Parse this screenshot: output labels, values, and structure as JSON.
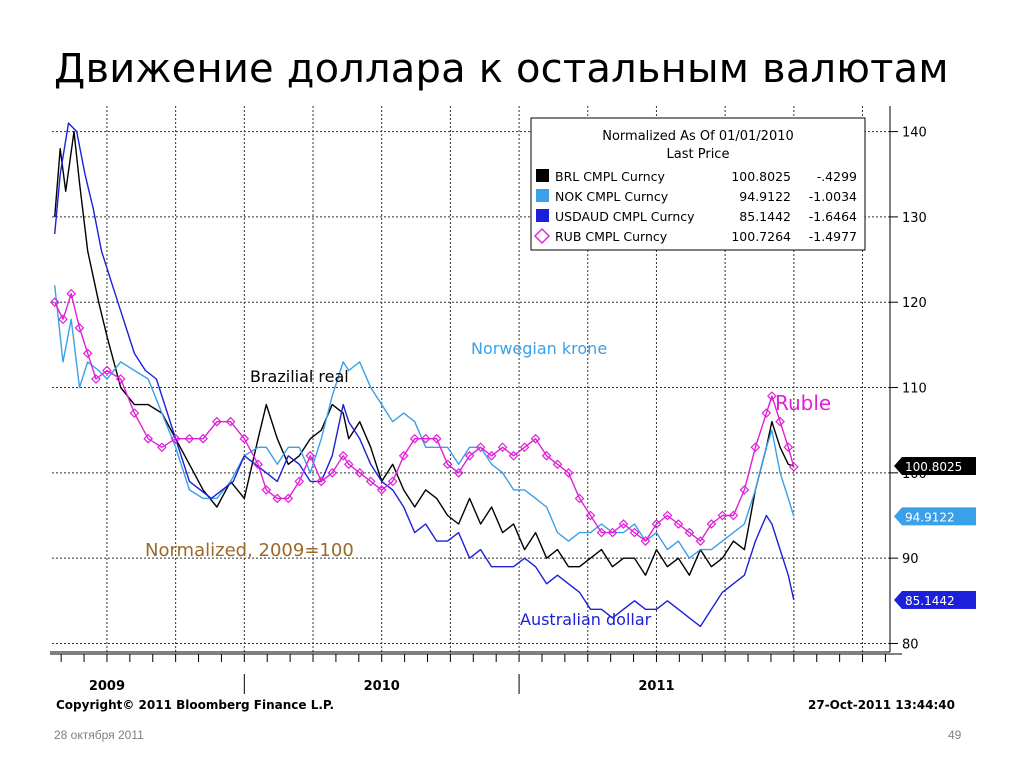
{
  "slide": {
    "title": "Движение доллара к остальным валютам",
    "date": "28 октября 2011",
    "page_number": "49"
  },
  "footer": {
    "copyright": "Copyright© 2011 Bloomberg Finance L.P.",
    "timestamp": "27-Oct-2011 13:44:40"
  },
  "chart_data": {
    "type": "line",
    "legend": {
      "header_line1": "Normalized As Of 01/01/2010",
      "header_line2": "Last Price",
      "placement": "top-right"
    },
    "annotations": {
      "brl": "Brazilial real",
      "nok": "Norwegian krone",
      "rub": "Ruble",
      "aud": "Australian dollar",
      "normalized": "Normalized, 2009=100"
    },
    "y_axis": {
      "side": "right",
      "ylim": [
        79,
        143
      ],
      "ticks": [
        80,
        90,
        100,
        110,
        120,
        130,
        140
      ]
    },
    "x_axis": {
      "xlim": [
        2008.8,
        2011.85
      ],
      "year_labels": [
        {
          "label": "2009",
          "x": 2009.0
        },
        {
          "label": "2010",
          "x": 2010.0
        },
        {
          "label": "2011",
          "x": 2011.0
        }
      ]
    },
    "grid": true,
    "series": [
      {
        "name": "BRL CMPL Curncy",
        "last_price": "100.8025",
        "change": "-.4299",
        "color": "#000000",
        "marker": "square",
        "points": [
          [
            2008.81,
            130
          ],
          [
            2008.83,
            138
          ],
          [
            2008.85,
            133
          ],
          [
            2008.88,
            140
          ],
          [
            2008.9,
            134
          ],
          [
            2008.93,
            126
          ],
          [
            2008.97,
            120
          ],
          [
            2009.0,
            116
          ],
          [
            2009.05,
            110
          ],
          [
            2009.1,
            108
          ],
          [
            2009.15,
            108
          ],
          [
            2009.2,
            107
          ],
          [
            2009.25,
            104
          ],
          [
            2009.3,
            101
          ],
          [
            2009.35,
            98
          ],
          [
            2009.4,
            96
          ],
          [
            2009.45,
            99
          ],
          [
            2009.5,
            97
          ],
          [
            2009.55,
            104
          ],
          [
            2009.58,
            108
          ],
          [
            2009.62,
            104
          ],
          [
            2009.66,
            101
          ],
          [
            2009.7,
            102
          ],
          [
            2009.74,
            104
          ],
          [
            2009.78,
            105
          ],
          [
            2009.82,
            108
          ],
          [
            2009.86,
            107
          ],
          [
            2009.88,
            104
          ],
          [
            2009.92,
            106
          ],
          [
            2009.96,
            103
          ],
          [
            2010.0,
            99
          ],
          [
            2010.04,
            101
          ],
          [
            2010.08,
            98
          ],
          [
            2010.12,
            96
          ],
          [
            2010.16,
            98
          ],
          [
            2010.2,
            97
          ],
          [
            2010.24,
            95
          ],
          [
            2010.28,
            94
          ],
          [
            2010.32,
            97
          ],
          [
            2010.36,
            94
          ],
          [
            2010.4,
            96
          ],
          [
            2010.44,
            93
          ],
          [
            2010.48,
            94
          ],
          [
            2010.52,
            91
          ],
          [
            2010.56,
            93
          ],
          [
            2010.6,
            90
          ],
          [
            2010.64,
            91
          ],
          [
            2010.68,
            89
          ],
          [
            2010.72,
            89
          ],
          [
            2010.76,
            90
          ],
          [
            2010.8,
            91
          ],
          [
            2010.84,
            89
          ],
          [
            2010.88,
            90
          ],
          [
            2010.92,
            90
          ],
          [
            2010.96,
            88
          ],
          [
            2011.0,
            91
          ],
          [
            2011.04,
            89
          ],
          [
            2011.08,
            90
          ],
          [
            2011.12,
            88
          ],
          [
            2011.16,
            91
          ],
          [
            2011.2,
            89
          ],
          [
            2011.24,
            90
          ],
          [
            2011.28,
            92
          ],
          [
            2011.32,
            91
          ],
          [
            2011.36,
            98
          ],
          [
            2011.4,
            103
          ],
          [
            2011.42,
            106
          ],
          [
            2011.45,
            103
          ],
          [
            2011.48,
            101
          ],
          [
            2011.5,
            100.8
          ]
        ]
      },
      {
        "name": "NOK CMPL Curncy",
        "last_price": "94.9122",
        "change": "-1.0034",
        "color": "#3aa0e8",
        "marker": "square",
        "points": [
          [
            2008.81,
            122
          ],
          [
            2008.84,
            113
          ],
          [
            2008.87,
            118
          ],
          [
            2008.9,
            110
          ],
          [
            2008.93,
            113
          ],
          [
            2008.97,
            112
          ],
          [
            2009.0,
            111
          ],
          [
            2009.05,
            113
          ],
          [
            2009.1,
            112
          ],
          [
            2009.15,
            111
          ],
          [
            2009.2,
            107
          ],
          [
            2009.25,
            103
          ],
          [
            2009.3,
            98
          ],
          [
            2009.35,
            97
          ],
          [
            2009.4,
            97
          ],
          [
            2009.45,
            99
          ],
          [
            2009.5,
            102
          ],
          [
            2009.55,
            103
          ],
          [
            2009.58,
            103
          ],
          [
            2009.62,
            101
          ],
          [
            2009.66,
            103
          ],
          [
            2009.7,
            103
          ],
          [
            2009.74,
            100
          ],
          [
            2009.78,
            104
          ],
          [
            2009.82,
            109
          ],
          [
            2009.86,
            113
          ],
          [
            2009.88,
            112
          ],
          [
            2009.92,
            113
          ],
          [
            2009.96,
            110
          ],
          [
            2010.0,
            108
          ],
          [
            2010.04,
            106
          ],
          [
            2010.08,
            107
          ],
          [
            2010.12,
            106
          ],
          [
            2010.16,
            103
          ],
          [
            2010.2,
            103
          ],
          [
            2010.24,
            103
          ],
          [
            2010.28,
            101
          ],
          [
            2010.32,
            103
          ],
          [
            2010.36,
            103
          ],
          [
            2010.4,
            101
          ],
          [
            2010.44,
            100
          ],
          [
            2010.48,
            98
          ],
          [
            2010.52,
            98
          ],
          [
            2010.56,
            97
          ],
          [
            2010.6,
            96
          ],
          [
            2010.64,
            93
          ],
          [
            2010.68,
            92
          ],
          [
            2010.72,
            93
          ],
          [
            2010.76,
            93
          ],
          [
            2010.8,
            94
          ],
          [
            2010.84,
            93
          ],
          [
            2010.88,
            93
          ],
          [
            2010.92,
            94
          ],
          [
            2010.96,
            92
          ],
          [
            2011.0,
            93
          ],
          [
            2011.04,
            91
          ],
          [
            2011.08,
            92
          ],
          [
            2011.12,
            90
          ],
          [
            2011.16,
            91
          ],
          [
            2011.2,
            91
          ],
          [
            2011.24,
            92
          ],
          [
            2011.28,
            93
          ],
          [
            2011.32,
            94
          ],
          [
            2011.36,
            98
          ],
          [
            2011.4,
            103
          ],
          [
            2011.42,
            105
          ],
          [
            2011.45,
            100
          ],
          [
            2011.48,
            97
          ],
          [
            2011.5,
            94.9
          ]
        ]
      },
      {
        "name": "USDAUD CMPL Curncy",
        "last_price": "85.1442",
        "change": "-1.6464",
        "color": "#1c20d8",
        "marker": "square",
        "points": [
          [
            2008.81,
            128
          ],
          [
            2008.83,
            135
          ],
          [
            2008.86,
            141
          ],
          [
            2008.89,
            140
          ],
          [
            2008.92,
            135
          ],
          [
            2008.95,
            131
          ],
          [
            2008.98,
            126
          ],
          [
            2009.02,
            122
          ],
          [
            2009.06,
            118
          ],
          [
            2009.1,
            114
          ],
          [
            2009.14,
            112
          ],
          [
            2009.18,
            111
          ],
          [
            2009.22,
            107
          ],
          [
            2009.26,
            103
          ],
          [
            2009.3,
            99
          ],
          [
            2009.34,
            98
          ],
          [
            2009.38,
            97
          ],
          [
            2009.42,
            98
          ],
          [
            2009.46,
            99
          ],
          [
            2009.5,
            102
          ],
          [
            2009.54,
            101
          ],
          [
            2009.58,
            100
          ],
          [
            2009.62,
            99
          ],
          [
            2009.66,
            102
          ],
          [
            2009.7,
            101
          ],
          [
            2009.74,
            99
          ],
          [
            2009.78,
            99
          ],
          [
            2009.82,
            102
          ],
          [
            2009.86,
            108
          ],
          [
            2009.88,
            106
          ],
          [
            2009.92,
            104
          ],
          [
            2009.96,
            101
          ],
          [
            2010.0,
            99
          ],
          [
            2010.04,
            98
          ],
          [
            2010.08,
            96
          ],
          [
            2010.12,
            93
          ],
          [
            2010.16,
            94
          ],
          [
            2010.2,
            92
          ],
          [
            2010.24,
            92
          ],
          [
            2010.28,
            93
          ],
          [
            2010.32,
            90
          ],
          [
            2010.36,
            91
          ],
          [
            2010.4,
            89
          ],
          [
            2010.44,
            89
          ],
          [
            2010.48,
            89
          ],
          [
            2010.52,
            90
          ],
          [
            2010.56,
            89
          ],
          [
            2010.6,
            87
          ],
          [
            2010.64,
            88
          ],
          [
            2010.68,
            87
          ],
          [
            2010.72,
            86
          ],
          [
            2010.76,
            84
          ],
          [
            2010.8,
            84
          ],
          [
            2010.84,
            83
          ],
          [
            2010.88,
            84
          ],
          [
            2010.92,
            85
          ],
          [
            2010.96,
            84
          ],
          [
            2011.0,
            84
          ],
          [
            2011.04,
            85
          ],
          [
            2011.08,
            84
          ],
          [
            2011.12,
            83
          ],
          [
            2011.16,
            82
          ],
          [
            2011.2,
            84
          ],
          [
            2011.24,
            86
          ],
          [
            2011.28,
            87
          ],
          [
            2011.32,
            88
          ],
          [
            2011.36,
            92
          ],
          [
            2011.4,
            95
          ],
          [
            2011.42,
            94
          ],
          [
            2011.45,
            91
          ],
          [
            2011.48,
            88
          ],
          [
            2011.5,
            85.1
          ]
        ]
      },
      {
        "name": "RUB CMPL Curncy",
        "last_price": "100.7264",
        "change": "-1.4977",
        "color": "#e020d8",
        "marker": "diamond",
        "points": [
          [
            2008.81,
            120
          ],
          [
            2008.84,
            118
          ],
          [
            2008.87,
            121
          ],
          [
            2008.9,
            117
          ],
          [
            2008.93,
            114
          ],
          [
            2008.96,
            111
          ],
          [
            2009.0,
            112
          ],
          [
            2009.05,
            111
          ],
          [
            2009.1,
            107
          ],
          [
            2009.15,
            104
          ],
          [
            2009.2,
            103
          ],
          [
            2009.25,
            104
          ],
          [
            2009.3,
            104
          ],
          [
            2009.35,
            104
          ],
          [
            2009.4,
            106
          ],
          [
            2009.45,
            106
          ],
          [
            2009.5,
            104
          ],
          [
            2009.55,
            101
          ],
          [
            2009.58,
            98
          ],
          [
            2009.62,
            97
          ],
          [
            2009.66,
            97
          ],
          [
            2009.7,
            99
          ],
          [
            2009.74,
            102
          ],
          [
            2009.78,
            99
          ],
          [
            2009.82,
            100
          ],
          [
            2009.86,
            102
          ],
          [
            2009.88,
            101
          ],
          [
            2009.92,
            100
          ],
          [
            2009.96,
            99
          ],
          [
            2010.0,
            98
          ],
          [
            2010.04,
            99
          ],
          [
            2010.08,
            102
          ],
          [
            2010.12,
            104
          ],
          [
            2010.16,
            104
          ],
          [
            2010.2,
            104
          ],
          [
            2010.24,
            101
          ],
          [
            2010.28,
            100
          ],
          [
            2010.32,
            102
          ],
          [
            2010.36,
            103
          ],
          [
            2010.4,
            102
          ],
          [
            2010.44,
            103
          ],
          [
            2010.48,
            102
          ],
          [
            2010.52,
            103
          ],
          [
            2010.56,
            104
          ],
          [
            2010.6,
            102
          ],
          [
            2010.64,
            101
          ],
          [
            2010.68,
            100
          ],
          [
            2010.72,
            97
          ],
          [
            2010.76,
            95
          ],
          [
            2010.8,
            93
          ],
          [
            2010.84,
            93
          ],
          [
            2010.88,
            94
          ],
          [
            2010.92,
            93
          ],
          [
            2010.96,
            92
          ],
          [
            2011.0,
            94
          ],
          [
            2011.04,
            95
          ],
          [
            2011.08,
            94
          ],
          [
            2011.12,
            93
          ],
          [
            2011.16,
            92
          ],
          [
            2011.2,
            94
          ],
          [
            2011.24,
            95
          ],
          [
            2011.28,
            95
          ],
          [
            2011.32,
            98
          ],
          [
            2011.36,
            103
          ],
          [
            2011.4,
            107
          ],
          [
            2011.42,
            109
          ],
          [
            2011.45,
            106
          ],
          [
            2011.48,
            103
          ],
          [
            2011.5,
            100.7
          ]
        ]
      }
    ]
  }
}
